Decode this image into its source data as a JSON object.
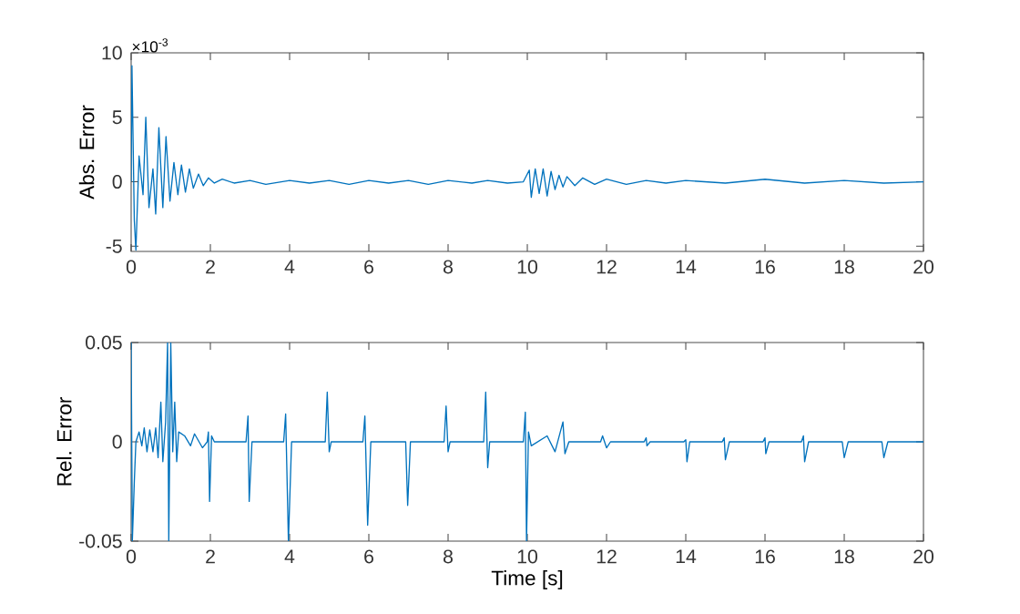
{
  "chart_data": [
    {
      "type": "line",
      "ylabel": "Abs. Error",
      "annotations": [
        "×10$^{-3}$"
      ],
      "x": [
        0,
        0.02,
        0.08,
        0.12,
        0.2,
        0.3,
        0.37,
        0.45,
        0.55,
        0.62,
        0.7,
        0.8,
        0.88,
        0.98,
        1.08,
        1.18,
        1.27,
        1.37,
        1.47,
        1.57,
        1.7,
        1.82,
        1.95,
        2.1,
        2.3,
        2.6,
        3,
        3.4,
        4,
        4.5,
        5,
        5.5,
        6,
        6.5,
        7,
        7.5,
        8,
        8.6,
        9,
        9.5,
        9.9,
        10.05,
        10.1,
        10.2,
        10.3,
        10.4,
        10.5,
        10.6,
        10.7,
        10.8,
        10.9,
        11,
        11.2,
        11.4,
        11.7,
        12,
        12.5,
        13,
        13.5,
        14,
        15,
        16,
        17,
        18,
        19,
        20
      ],
      "series": [
        {
          "color": "#0072bd",
          "values": [
            0,
            9,
            -3,
            -5.3,
            2,
            -1,
            5,
            -2,
            1,
            -2.5,
            4.2,
            -2,
            3.5,
            -1.5,
            1.5,
            -1,
            1.3,
            -0.8,
            1,
            -0.5,
            0.6,
            -0.3,
            0.3,
            -0.1,
            0.2,
            -0.1,
            0.1,
            -0.2,
            0.1,
            -0.1,
            0.1,
            -0.2,
            0.1,
            -0.1,
            0.1,
            -0.2,
            0.1,
            -0.1,
            0.1,
            -0.1,
            0,
            0.9,
            -1.2,
            1,
            -0.9,
            1,
            -1.1,
            0.8,
            -0.6,
            0.5,
            -0.4,
            0.4,
            -0.3,
            0.3,
            -0.2,
            0.2,
            -0.2,
            0.1,
            -0.1,
            0.1,
            -0.1,
            0.2,
            -0.1,
            0.1,
            -0.1,
            0
          ]
        }
      ],
      "xlim": [
        0,
        20
      ],
      "xticks": [
        0,
        2,
        4,
        6,
        8,
        10,
        12,
        14,
        16,
        18,
        20
      ],
      "ylim": [
        -5.4,
        10
      ],
      "yticks": [
        -5,
        0,
        5,
        10
      ]
    },
    {
      "type": "line",
      "xlabel": "Time [s]",
      "ylabel": "Rel. Error",
      "x": [
        0,
        0.03,
        0.08,
        0.12,
        0.2,
        0.27,
        0.33,
        0.4,
        0.47,
        0.55,
        0.62,
        0.68,
        0.75,
        0.8,
        0.87,
        0.92,
        0.95,
        1.0,
        1.05,
        1.1,
        1.15,
        1.2,
        1.35,
        1.5,
        1.6,
        1.8,
        1.92,
        1.95,
        1.98,
        2.03,
        2.1,
        2.9,
        2.95,
        2.98,
        3.05,
        3.85,
        3.9,
        3.97,
        4.05,
        4.9,
        4.95,
        5.0,
        5.05,
        5.85,
        5.9,
        5.97,
        6.05,
        6.93,
        6.98,
        7.05,
        7.9,
        7.95,
        8.0,
        8.05,
        8.9,
        8.95,
        9.0,
        9.05,
        9.9,
        9.95,
        9.98,
        10.03,
        10.1,
        10.5,
        10.7,
        10.9,
        10.95,
        11.05,
        11.85,
        11.9,
        12.0,
        12.1,
        12.95,
        13,
        13.02,
        13.1,
        13.95,
        14,
        14.03,
        14.1,
        14.92,
        14.97,
        15.0,
        15.1,
        15.95,
        16,
        16.02,
        16.1,
        16.92,
        16.97,
        17.0,
        17.1,
        17.95,
        18.0,
        18.1,
        18.95,
        19.0,
        19.1,
        20
      ],
      "series": [
        {
          "color": "#0072bd",
          "values": [
            0.05,
            -0.05,
            -0.02,
            0,
            0.005,
            -0.002,
            0.007,
            -0.005,
            0.006,
            -0.005,
            0.007,
            -0.008,
            0.02,
            -0.01,
            0.01,
            0.05,
            -0.05,
            0.05,
            -0.005,
            0.02,
            -0.01,
            0.005,
            0.003,
            -0.002,
            0.004,
            -0.003,
            0,
            0.005,
            -0.03,
            0.003,
            0,
            0,
            0.013,
            -0.03,
            0,
            0,
            0.014,
            -0.05,
            0,
            0,
            0.025,
            -0.005,
            0,
            0,
            0.013,
            -0.042,
            0,
            0,
            -0.032,
            0,
            0,
            0.018,
            -0.005,
            0,
            0,
            0.025,
            -0.013,
            0,
            0,
            0.015,
            -0.05,
            0.005,
            -0.002,
            0.003,
            -0.005,
            0.01,
            -0.006,
            0,
            0,
            0.003,
            -0.003,
            0,
            0,
            0.002,
            -0.002,
            0,
            0,
            0.001,
            -0.01,
            0,
            0,
            0.002,
            -0.009,
            0,
            0,
            0.002,
            -0.006,
            0,
            0,
            0.003,
            -0.01,
            0,
            0,
            -0.008,
            0,
            0,
            -0.008,
            0,
            0
          ]
        }
      ],
      "xlim": [
        0,
        20
      ],
      "xticks": [
        0,
        2,
        4,
        6,
        8,
        10,
        12,
        14,
        16,
        18,
        20
      ],
      "ylim": [
        -0.05,
        0.05
      ],
      "yticks": [
        {
          "value": -0.05,
          "label": "-0.05"
        },
        {
          "value": 0,
          "label": "0"
        },
        {
          "value": 0.05,
          "label": "0.05"
        }
      ]
    }
  ]
}
